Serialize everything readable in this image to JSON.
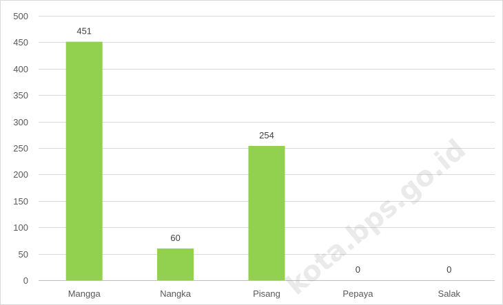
{
  "chart_data": {
    "type": "bar",
    "categories": [
      "Mangga",
      "Nangka",
      "Pisang",
      "Pepaya",
      "Salak"
    ],
    "values": [
      451,
      60,
      254,
      0,
      0
    ],
    "y_ticks": [
      "0",
      "50",
      "100",
      "150",
      "200",
      "250",
      "300",
      "350",
      "400",
      "450",
      "500"
    ],
    "ylim": [
      0,
      500
    ],
    "grid": true,
    "legend": "none",
    "bar_color": "#92d050"
  },
  "watermark": "kota.bps.go.id"
}
